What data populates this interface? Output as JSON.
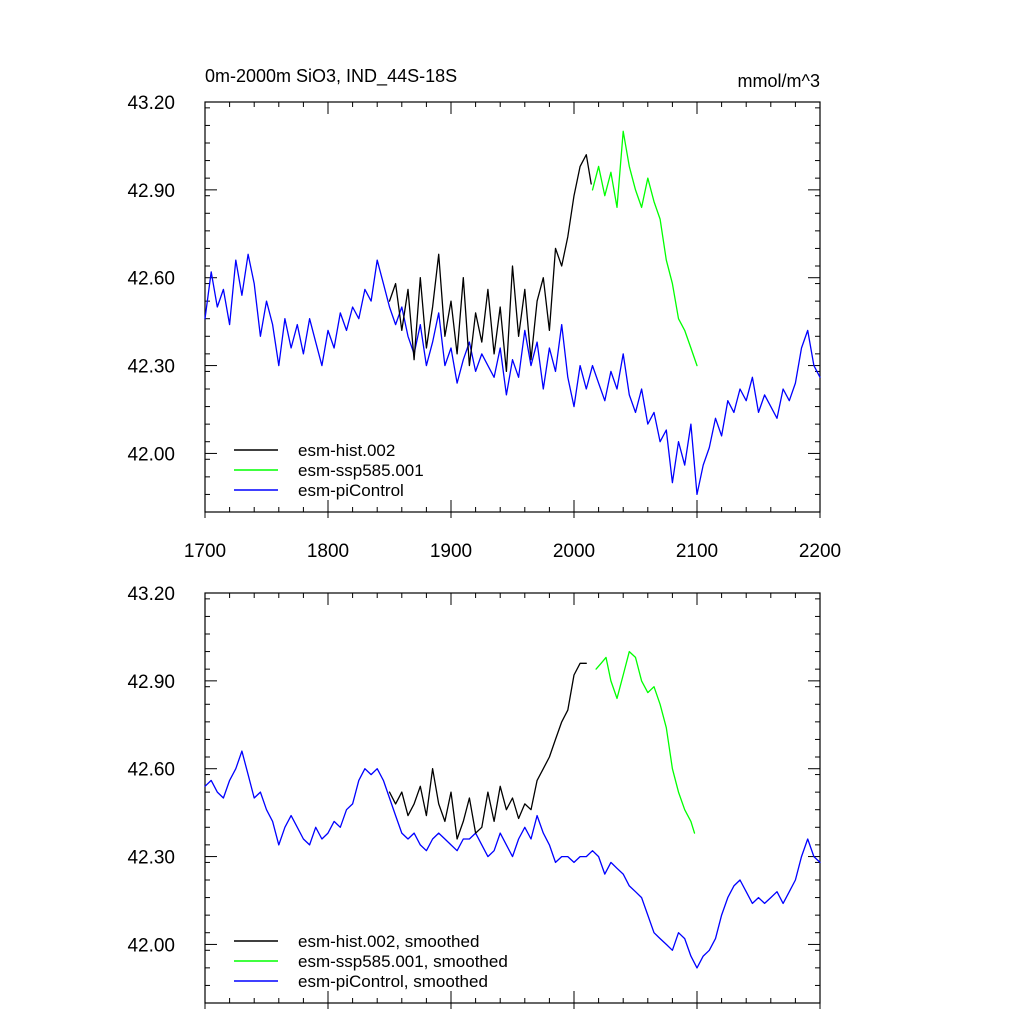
{
  "chart_data": [
    {
      "type": "line",
      "title": "0m-2000m SiO3, IND_44S-18S",
      "units": "mmol/m^3",
      "xlabel": "",
      "ylabel": "",
      "xlim": [
        1700,
        2200
      ],
      "ylim": [
        41.8,
        43.2
      ],
      "x_ticks": [
        1700,
        1800,
        1900,
        2000,
        2100,
        2200
      ],
      "x_tick_labels": [
        "1700",
        "1800",
        "1900",
        "2000",
        "2100",
        "2200"
      ],
      "y_ticks": [
        42.0,
        42.3,
        42.6,
        42.9,
        43.2
      ],
      "y_tick_labels": [
        "42.00",
        "42.30",
        "42.60",
        "42.90",
        "43.20"
      ],
      "legend_position": "bottom-left",
      "series": [
        {
          "name": "esm-hist.002",
          "color": "#000000",
          "x": [
            1850,
            1855,
            1860,
            1865,
            1870,
            1875,
            1880,
            1885,
            1890,
            1895,
            1900,
            1905,
            1910,
            1915,
            1920,
            1925,
            1930,
            1935,
            1940,
            1945,
            1950,
            1955,
            1960,
            1965,
            1970,
            1975,
            1980,
            1985,
            1990,
            1995,
            2000,
            2005,
            2010,
            2014
          ],
          "values": [
            42.52,
            42.58,
            42.42,
            42.56,
            42.32,
            42.6,
            42.36,
            42.5,
            42.68,
            42.4,
            42.52,
            42.34,
            42.6,
            42.3,
            42.48,
            42.38,
            42.56,
            42.34,
            42.5,
            42.28,
            42.64,
            42.4,
            42.56,
            42.32,
            42.52,
            42.6,
            42.42,
            42.7,
            42.64,
            42.74,
            42.88,
            42.98,
            43.02,
            42.92
          ]
        },
        {
          "name": "esm-ssp585.001",
          "color": "#00ff00",
          "x": [
            2015,
            2020,
            2025,
            2030,
            2035,
            2040,
            2045,
            2050,
            2055,
            2060,
            2065,
            2070,
            2075,
            2080,
            2085,
            2090,
            2095,
            2100
          ],
          "values": [
            42.9,
            42.98,
            42.88,
            42.96,
            42.84,
            43.1,
            42.98,
            42.9,
            42.84,
            42.94,
            42.86,
            42.8,
            42.66,
            42.58,
            42.46,
            42.42,
            42.36,
            42.3
          ]
        },
        {
          "name": "esm-piControl",
          "color": "#0000ff",
          "x": [
            1700,
            1705,
            1710,
            1715,
            1720,
            1725,
            1730,
            1735,
            1740,
            1745,
            1750,
            1755,
            1760,
            1765,
            1770,
            1775,
            1780,
            1785,
            1790,
            1795,
            1800,
            1805,
            1810,
            1815,
            1820,
            1825,
            1830,
            1835,
            1840,
            1845,
            1850,
            1855,
            1860,
            1865,
            1870,
            1875,
            1880,
            1885,
            1890,
            1895,
            1900,
            1905,
            1910,
            1915,
            1920,
            1925,
            1930,
            1935,
            1940,
            1945,
            1950,
            1955,
            1960,
            1965,
            1970,
            1975,
            1980,
            1985,
            1990,
            1995,
            2000,
            2005,
            2010,
            2015,
            2020,
            2025,
            2030,
            2035,
            2040,
            2045,
            2050,
            2055,
            2060,
            2065,
            2070,
            2075,
            2080,
            2085,
            2090,
            2095,
            2100,
            2105,
            2110,
            2115,
            2120,
            2125,
            2130,
            2135,
            2140,
            2145,
            2150,
            2155,
            2160,
            2165,
            2170,
            2175,
            2180,
            2185,
            2190,
            2195,
            2200
          ],
          "values": [
            42.46,
            42.62,
            42.5,
            42.56,
            42.44,
            42.66,
            42.54,
            42.68,
            42.58,
            42.4,
            42.52,
            42.44,
            42.3,
            42.46,
            42.36,
            42.44,
            42.34,
            42.46,
            42.38,
            42.3,
            42.42,
            42.36,
            42.48,
            42.42,
            42.5,
            42.46,
            42.56,
            42.52,
            42.66,
            42.58,
            42.5,
            42.44,
            42.5,
            42.4,
            42.34,
            42.44,
            42.3,
            42.38,
            42.48,
            42.3,
            42.36,
            42.24,
            42.32,
            42.38,
            42.28,
            42.34,
            42.3,
            42.26,
            42.36,
            42.2,
            42.32,
            42.26,
            42.42,
            42.3,
            42.38,
            42.22,
            42.36,
            42.28,
            42.44,
            42.26,
            42.16,
            42.3,
            42.22,
            42.3,
            42.24,
            42.18,
            42.28,
            42.22,
            42.34,
            42.2,
            42.14,
            42.22,
            42.1,
            42.14,
            42.04,
            42.08,
            41.9,
            42.04,
            41.96,
            42.1,
            41.86,
            41.96,
            42.02,
            42.12,
            42.06,
            42.18,
            42.14,
            42.22,
            42.18,
            42.26,
            42.14,
            42.2,
            42.16,
            42.12,
            42.22,
            42.18,
            42.24,
            42.36,
            42.42,
            42.3,
            42.26
          ]
        }
      ],
      "legend": [
        "esm-hist.002",
        "esm-ssp585.001",
        "esm-piControl"
      ]
    },
    {
      "type": "line",
      "title": "",
      "xlabel": "",
      "ylabel": "",
      "xlim": [
        1700,
        2200
      ],
      "ylim": [
        41.8,
        43.2
      ],
      "y_ticks": [
        42.0,
        42.3,
        42.6,
        42.9,
        43.2
      ],
      "y_tick_labels": [
        "42.00",
        "42.30",
        "42.60",
        "42.90",
        "43.20"
      ],
      "legend_position": "bottom-left",
      "series": [
        {
          "name": "esm-hist.002, smoothed",
          "color": "#000000",
          "x": [
            1850,
            1855,
            1860,
            1865,
            1870,
            1875,
            1880,
            1885,
            1890,
            1895,
            1900,
            1905,
            1910,
            1915,
            1920,
            1925,
            1930,
            1935,
            1940,
            1945,
            1950,
            1955,
            1960,
            1965,
            1970,
            1975,
            1980,
            1985,
            1990,
            1995,
            2000,
            2005,
            2010
          ],
          "values": [
            42.52,
            42.48,
            42.52,
            42.44,
            42.48,
            42.54,
            42.44,
            42.6,
            42.48,
            42.42,
            42.52,
            42.36,
            42.42,
            42.5,
            42.38,
            42.4,
            42.52,
            42.42,
            42.54,
            42.46,
            42.5,
            42.43,
            42.48,
            42.46,
            42.56,
            42.6,
            42.64,
            42.7,
            42.76,
            42.8,
            42.92,
            42.96,
            42.96
          ]
        },
        {
          "name": "esm-ssp585.001, smoothed",
          "color": "#00ff00",
          "x": [
            2018,
            2022,
            2026,
            2030,
            2035,
            2040,
            2045,
            2050,
            2055,
            2060,
            2065,
            2070,
            2075,
            2080,
            2085,
            2090,
            2095,
            2098
          ],
          "values": [
            42.94,
            42.96,
            42.98,
            42.9,
            42.84,
            42.92,
            43.0,
            42.98,
            42.9,
            42.86,
            42.88,
            42.82,
            42.74,
            42.6,
            42.52,
            42.46,
            42.42,
            42.38
          ]
        },
        {
          "name": "esm-piControl, smoothed",
          "color": "#0000ff",
          "x": [
            1700,
            1705,
            1710,
            1715,
            1720,
            1725,
            1730,
            1735,
            1740,
            1745,
            1750,
            1755,
            1760,
            1765,
            1770,
            1775,
            1780,
            1785,
            1790,
            1795,
            1800,
            1805,
            1810,
            1815,
            1820,
            1825,
            1830,
            1835,
            1840,
            1845,
            1850,
            1855,
            1860,
            1865,
            1870,
            1875,
            1880,
            1885,
            1890,
            1895,
            1900,
            1905,
            1910,
            1915,
            1920,
            1925,
            1930,
            1935,
            1940,
            1945,
            1950,
            1955,
            1960,
            1965,
            1970,
            1975,
            1980,
            1985,
            1990,
            1995,
            2000,
            2005,
            2010,
            2015,
            2020,
            2025,
            2030,
            2035,
            2040,
            2045,
            2050,
            2055,
            2060,
            2065,
            2070,
            2075,
            2080,
            2085,
            2090,
            2095,
            2100,
            2105,
            2110,
            2115,
            2120,
            2125,
            2130,
            2135,
            2140,
            2145,
            2150,
            2155,
            2160,
            2165,
            2170,
            2175,
            2180,
            2185,
            2190,
            2195,
            2200
          ],
          "values": [
            42.54,
            42.56,
            42.52,
            42.5,
            42.56,
            42.6,
            42.66,
            42.58,
            42.5,
            42.52,
            42.46,
            42.42,
            42.34,
            42.4,
            42.44,
            42.4,
            42.36,
            42.34,
            42.4,
            42.36,
            42.38,
            42.42,
            42.4,
            42.46,
            42.48,
            42.56,
            42.6,
            42.58,
            42.6,
            42.56,
            42.5,
            42.44,
            42.38,
            42.36,
            42.38,
            42.34,
            42.32,
            42.36,
            42.38,
            42.36,
            42.34,
            42.32,
            42.36,
            42.36,
            42.38,
            42.34,
            42.3,
            42.32,
            42.38,
            42.34,
            42.3,
            42.36,
            42.4,
            42.36,
            42.44,
            42.38,
            42.34,
            42.28,
            42.3,
            42.3,
            42.28,
            42.3,
            42.3,
            42.32,
            42.3,
            42.24,
            42.28,
            42.26,
            42.24,
            42.2,
            42.18,
            42.16,
            42.1,
            42.04,
            42.02,
            42.0,
            41.98,
            42.04,
            42.02,
            41.96,
            41.92,
            41.96,
            41.98,
            42.02,
            42.1,
            42.16,
            42.2,
            42.22,
            42.18,
            42.14,
            42.16,
            42.14,
            42.16,
            42.18,
            42.14,
            42.18,
            42.22,
            42.3,
            42.36,
            42.3,
            42.28
          ]
        }
      ],
      "legend": [
        "esm-hist.002, smoothed",
        "esm-ssp585.001, smoothed",
        "esm-piControl, smoothed"
      ]
    }
  ]
}
